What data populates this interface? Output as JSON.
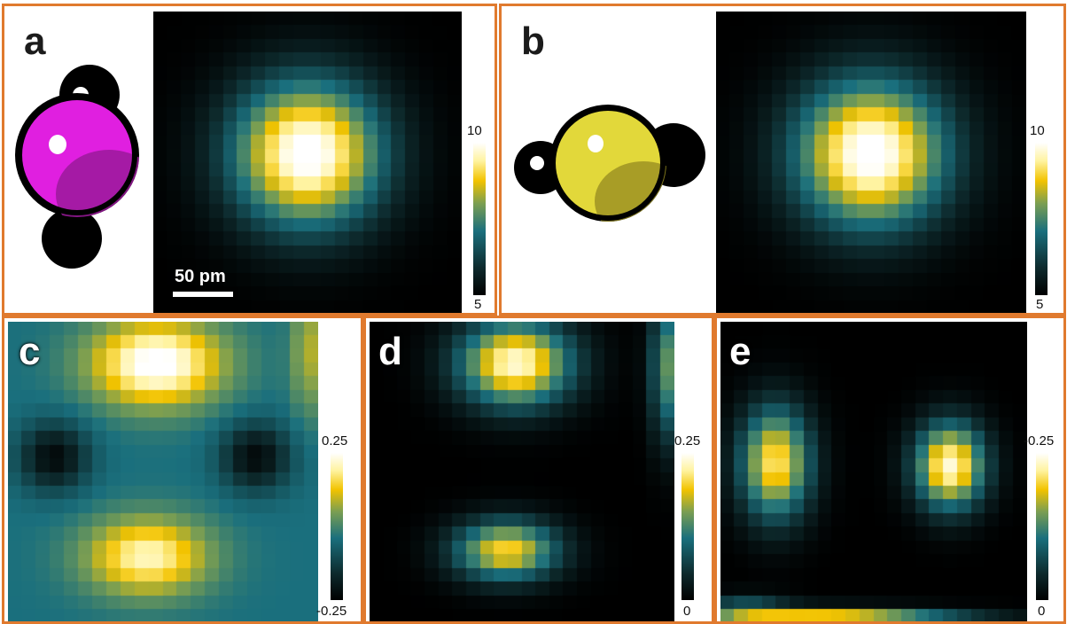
{
  "panels": {
    "a": {
      "label": "a",
      "scale_bar": "50 pm",
      "colorbar": {
        "max": "10",
        "min": "5"
      },
      "molecule_color": "#e01fe0"
    },
    "b": {
      "label": "b",
      "colorbar": {
        "max": "10",
        "min": "5"
      },
      "molecule_color": "#e2d83a"
    },
    "c": {
      "label": "c",
      "colorbar": {
        "max": "0.25",
        "min": "-0.25"
      }
    },
    "d": {
      "label": "d",
      "colorbar": {
        "max": "0.25",
        "min": "0"
      }
    },
    "e": {
      "label": "e",
      "colorbar": {
        "max": "-0.25",
        "min": "0"
      }
    }
  },
  "colors": {
    "border": "#e07a2e"
  }
}
